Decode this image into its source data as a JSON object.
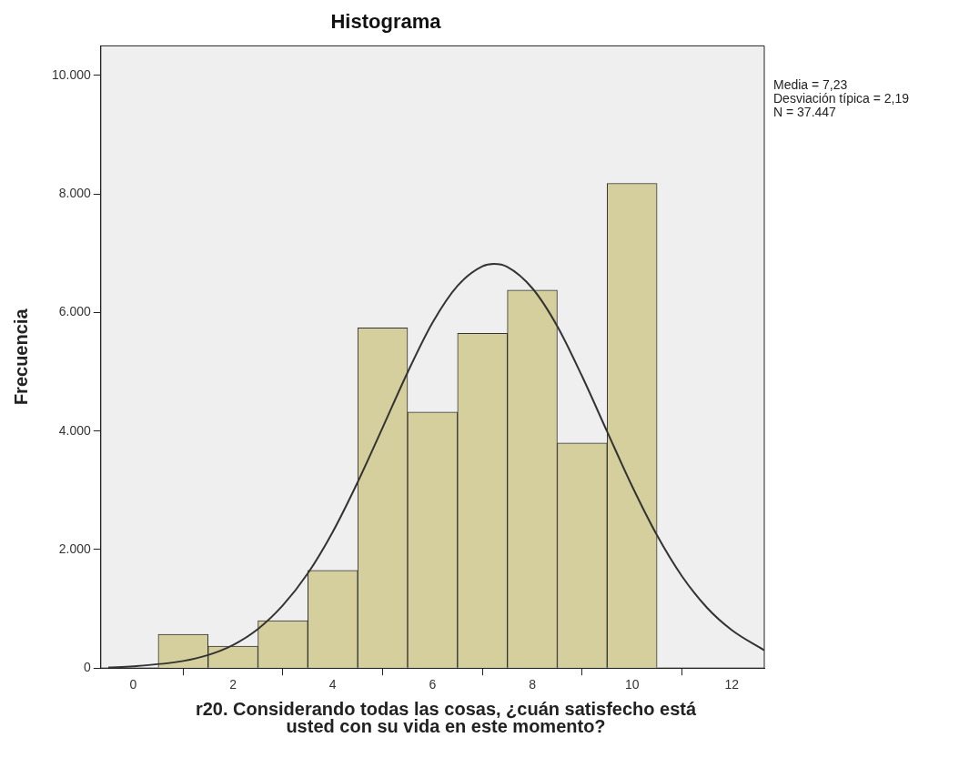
{
  "chart_data": {
    "type": "histogram",
    "title": "Histograma",
    "xlabel": "r20. Considerando todas las cosas, ¿cuán satisfecho está usted con su vida en este momento?",
    "ylabel": "Frecuencia",
    "annotations": [
      "Media = 7,23",
      "Desviación típica = 2,19",
      "N = 37.447"
    ],
    "xlim": [
      -0.65,
      12.65
    ],
    "xticks": [
      0,
      2,
      4,
      6,
      8,
      10,
      12
    ],
    "ylim": [
      0,
      10500
    ],
    "yticks": [
      {
        "value": 0,
        "label": "0"
      },
      {
        "value": 2000,
        "label": "2.000"
      },
      {
        "value": 4000,
        "label": "4.000"
      },
      {
        "value": 6000,
        "label": "6.000"
      },
      {
        "value": 8000,
        "label": "8.000"
      },
      {
        "value": 10000,
        "label": "10.000"
      }
    ],
    "legend": false,
    "bins": [
      0.5,
      1.5,
      2.5,
      3.5,
      4.5,
      5.5,
      6.5,
      7.5,
      8.5,
      9.5,
      10.5
    ],
    "values": [
      570,
      370,
      800,
      1650,
      5740,
      4320,
      5650,
      6380,
      3800,
      8180
    ],
    "color": "#d4cf9c",
    "series": [
      {
        "type": "line",
        "color": "#333333",
        "x": [
          -0.5,
          0,
          1,
          1.5,
          2,
          2.5,
          3,
          3.5,
          4,
          4.5,
          5,
          5.5,
          6,
          6.5,
          7,
          7.23,
          7.5,
          8,
          8.5,
          9,
          9.5,
          10,
          10.5,
          11,
          11.5,
          12,
          12.65
        ],
        "values": [
          10,
          30,
          120,
          220,
          390,
          660,
          1060,
          1600,
          2300,
          3140,
          4060,
          4990,
          5830,
          6450,
          6780,
          6820,
          6770,
          6410,
          5770,
          4920,
          3990,
          3070,
          2240,
          1550,
          1020,
          640,
          300
        ]
      }
    ]
  }
}
